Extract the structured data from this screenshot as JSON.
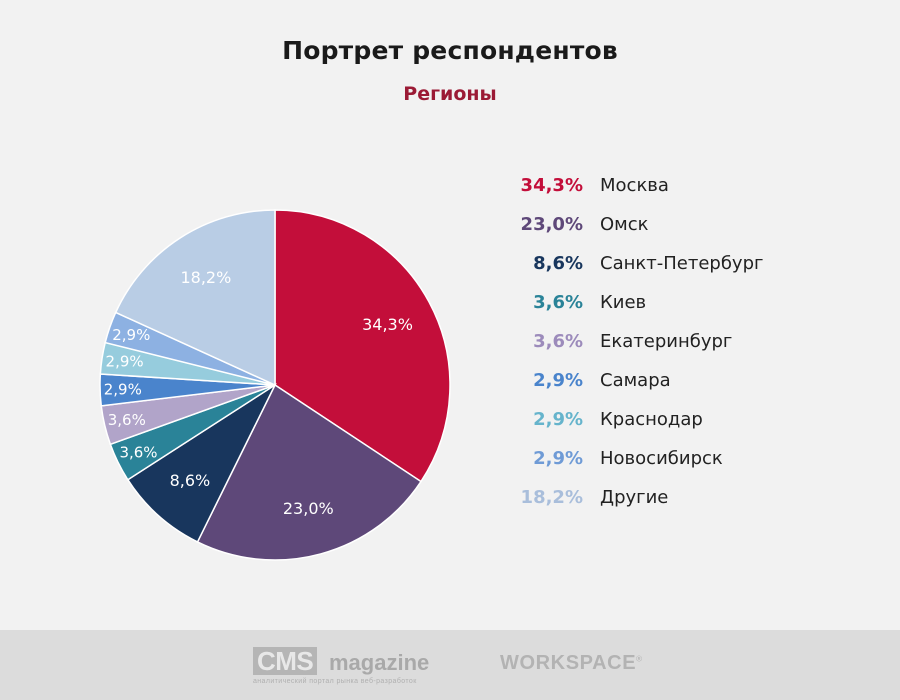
{
  "title": "Портрет респондентов",
  "subtitle": "Регионы",
  "colors": {
    "subtitle": "#9b1a35",
    "background": "#f2f2f2"
  },
  "chart_data": {
    "type": "pie",
    "title": "Портрет респондентов",
    "subtitle": "Регионы",
    "slices": [
      {
        "label": "Москва",
        "value": 34.3,
        "value_label": "34,3%",
        "color": "#c30e3a",
        "legend_color": "#c30e3a",
        "label_color": "#ffffff"
      },
      {
        "label": "Омск",
        "value": 23.0,
        "value_label": "23,0%",
        "color": "#5e4879",
        "legend_color": "#5e4879",
        "label_color": "#ffffff"
      },
      {
        "label": "Санкт-Петербург",
        "value": 8.6,
        "value_label": "8,6%",
        "color": "#18365d",
        "legend_color": "#18365d",
        "label_color": "#ffffff"
      },
      {
        "label": "Киев",
        "value": 3.6,
        "value_label": "3,6%",
        "color": "#2a8398",
        "legend_color": "#2a8398",
        "label_color": "#ffffff"
      },
      {
        "label": "Екатеринбург",
        "value": 3.6,
        "value_label": "3,6%",
        "color": "#b1a4c9",
        "legend_color": "#9c8bbb",
        "label_color": "#ffffff"
      },
      {
        "label": "Самара",
        "value": 2.9,
        "value_label": "2,9%",
        "color": "#4a84cc",
        "legend_color": "#4a84cc",
        "label_color": "#ffffff"
      },
      {
        "label": "Краснодар",
        "value": 2.9,
        "value_label": "2,9%",
        "color": "#96ccdd",
        "legend_color": "#66b4cc",
        "label_color": "#ffffff"
      },
      {
        "label": "Новосибирск",
        "value": 2.9,
        "value_label": "2,9%",
        "color": "#8db1e2",
        "legend_color": "#6f9bd6",
        "label_color": "#ffffff"
      },
      {
        "label": "Другие",
        "value": 18.2,
        "value_label": "18,2%",
        "color": "#b9cde5",
        "legend_color": "#a9bedb",
        "label_color": "#ffffff"
      }
    ],
    "start_angle_deg": 0,
    "direction": "clockwise",
    "legend_position": "right"
  },
  "footer": {
    "cms_box": "CMS",
    "cms_word": "magazine",
    "cms_tagline": "аналитический портал рынка веб-разработок",
    "workspace": "WORKSPACE",
    "workspace_mark": "®"
  }
}
